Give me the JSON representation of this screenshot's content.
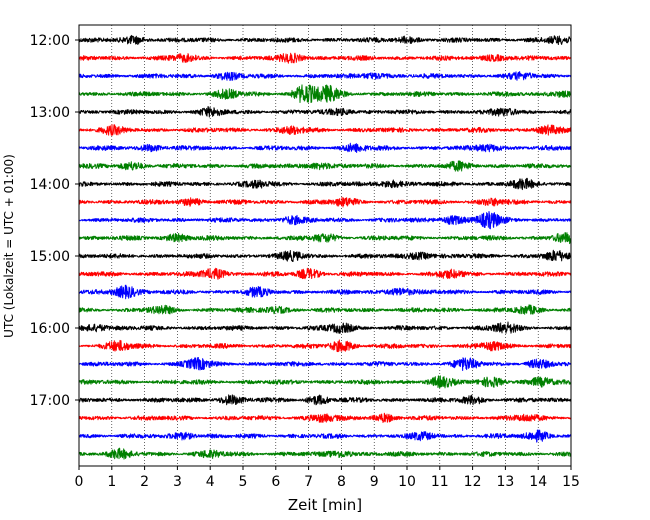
{
  "chart_data": {
    "type": "line",
    "chart_kind": "helicorder seismogram",
    "xlabel": "Zeit  [min]",
    "ylabel": "UTC (Lokalzeit = UTC + 01:00)",
    "xlim": [
      0,
      15
    ],
    "x_ticks": [
      0,
      1,
      2,
      3,
      4,
      5,
      6,
      7,
      8,
      9,
      10,
      11,
      12,
      13,
      14,
      15
    ],
    "x_tick_labels": [
      "0",
      "1",
      "2",
      "3",
      "4",
      "5",
      "6",
      "7",
      "8",
      "9",
      "10",
      "11",
      "12",
      "13",
      "14",
      "15"
    ],
    "y_tick_labels": [
      "12:00",
      "13:00",
      "14:00",
      "15:00",
      "16:00",
      "17:00"
    ],
    "y_tick_rows": [
      0,
      4,
      8,
      12,
      16,
      20
    ],
    "x_grid": "dotted vertical lines at each minute",
    "y_grid": false,
    "legend": "none",
    "trace_colors_cycle": [
      "#000000",
      "#ff0000",
      "#0000ff",
      "#008000"
    ],
    "rows": [
      {
        "start": "12:00",
        "bursts": [
          [
            1.7,
            1.0
          ],
          [
            10.0,
            0.8
          ],
          [
            14.6,
            0.9
          ]
        ]
      },
      {
        "start": "12:15",
        "bursts": [
          [
            3.2,
            0.9
          ],
          [
            6.5,
            1.2
          ],
          [
            12.7,
            0.8
          ]
        ]
      },
      {
        "start": "12:30",
        "bursts": [
          [
            4.5,
            0.9
          ],
          [
            9.0,
            0.8
          ],
          [
            13.5,
            0.7
          ]
        ]
      },
      {
        "start": "12:45",
        "bursts": [
          [
            4.5,
            1.1
          ],
          [
            6.9,
            2.6
          ],
          [
            7.6,
            2.2
          ],
          [
            14.7,
            0.8
          ]
        ]
      },
      {
        "start": "13:00",
        "bursts": [
          [
            4.0,
            1.0
          ],
          [
            8.0,
            0.8
          ],
          [
            13.0,
            0.9
          ]
        ]
      },
      {
        "start": "13:15",
        "bursts": [
          [
            1.0,
            1.0
          ],
          [
            6.5,
            0.9
          ],
          [
            14.3,
            1.1
          ]
        ]
      },
      {
        "start": "13:30",
        "bursts": [
          [
            2.2,
            0.8
          ],
          [
            8.4,
            1.0
          ],
          [
            12.5,
            0.9
          ]
        ]
      },
      {
        "start": "13:45",
        "bursts": [
          [
            1.6,
            1.0
          ],
          [
            7.3,
            0.9
          ],
          [
            11.6,
            1.0
          ]
        ]
      },
      {
        "start": "14:00",
        "bursts": [
          [
            5.5,
            0.8
          ],
          [
            9.5,
            1.0
          ],
          [
            13.5,
            1.2
          ]
        ]
      },
      {
        "start": "14:15",
        "bursts": [
          [
            3.4,
            0.9
          ],
          [
            8.1,
            1.0
          ],
          [
            12.6,
            0.9
          ]
        ]
      },
      {
        "start": "14:30",
        "bursts": [
          [
            6.5,
            1.0
          ],
          [
            11.4,
            1.2
          ],
          [
            12.5,
            2.2
          ]
        ]
      },
      {
        "start": "14:45",
        "bursts": [
          [
            3.0,
            1.0
          ],
          [
            7.5,
            1.0
          ],
          [
            14.8,
            1.2
          ]
        ]
      },
      {
        "start": "15:00",
        "bursts": [
          [
            6.5,
            1.1
          ],
          [
            10.4,
            1.0
          ],
          [
            14.5,
            1.2
          ]
        ]
      },
      {
        "start": "15:15",
        "bursts": [
          [
            4.1,
            1.5
          ],
          [
            7.0,
            1.3
          ],
          [
            11.3,
            1.0
          ]
        ]
      },
      {
        "start": "15:30",
        "bursts": [
          [
            1.4,
            1.8
          ],
          [
            5.4,
            1.0
          ],
          [
            9.8,
            1.1
          ]
        ]
      },
      {
        "start": "15:45",
        "bursts": [
          [
            2.5,
            0.9
          ],
          [
            6.0,
            0.8
          ],
          [
            13.7,
            0.9
          ]
        ]
      },
      {
        "start": "16:00",
        "bursts": [
          [
            0.5,
            1.0
          ],
          [
            8.0,
            1.3
          ],
          [
            13.0,
            1.4
          ]
        ]
      },
      {
        "start": "16:15",
        "bursts": [
          [
            1.2,
            1.3
          ],
          [
            8.0,
            1.5
          ],
          [
            12.6,
            1.0
          ]
        ]
      },
      {
        "start": "16:30",
        "bursts": [
          [
            3.6,
            1.5
          ],
          [
            11.8,
            1.5
          ],
          [
            14.0,
            1.0
          ]
        ]
      },
      {
        "start": "16:45",
        "bursts": [
          [
            11.0,
            1.4
          ],
          [
            12.6,
            1.3
          ],
          [
            14.1,
            1.0
          ]
        ]
      },
      {
        "start": "17:00",
        "bursts": [
          [
            4.6,
            1.2
          ],
          [
            7.3,
            1.1
          ],
          [
            12.0,
            1.0
          ]
        ]
      },
      {
        "start": "17:15",
        "bursts": [
          [
            7.4,
            1.0
          ],
          [
            9.3,
            1.0
          ],
          [
            13.7,
            0.8
          ]
        ]
      },
      {
        "start": "17:30",
        "bursts": [
          [
            3.2,
            0.9
          ],
          [
            10.5,
            0.8
          ],
          [
            14.0,
            1.4
          ]
        ]
      },
      {
        "start": "17:45",
        "bursts": [
          [
            1.2,
            1.1
          ],
          [
            4.0,
            0.8
          ],
          [
            8.0,
            0.9
          ]
        ]
      }
    ]
  }
}
